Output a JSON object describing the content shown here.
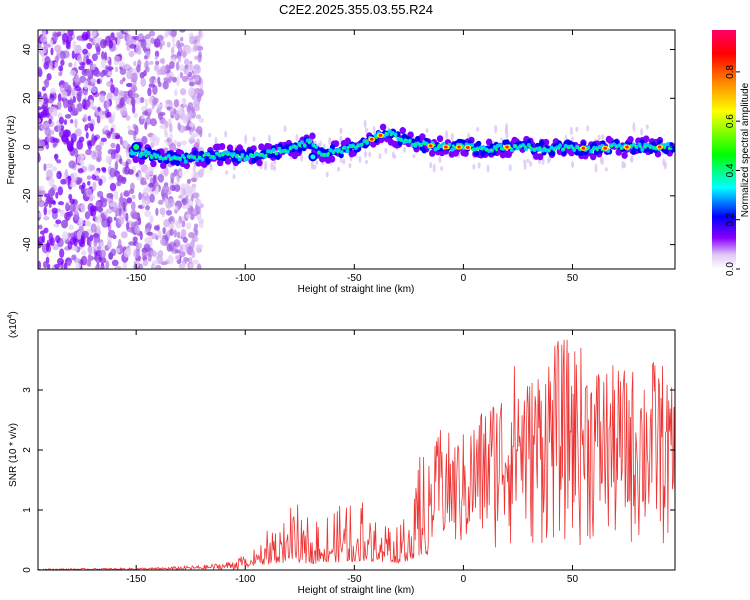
{
  "chart_data": [
    {
      "type": "heatmap",
      "title": "C2E2.2025.355.03.55.R24",
      "xlabel": "Height of straight line (km)",
      "ylabel": "Frequency (Hz)",
      "xlim": [
        -195,
        97
      ],
      "ylim": [
        -50,
        48
      ],
      "xticks": [
        -150,
        -100,
        -50,
        0,
        50
      ],
      "yticks": [
        -40,
        -20,
        0,
        20,
        40
      ],
      "colorbar": {
        "label": "Normalized spectral amplitude",
        "range": [
          0,
          0.97
        ],
        "ticks": [
          0.0,
          0.2,
          0.4,
          0.6,
          0.8
        ],
        "colors": [
          "#ffffff",
          "#d8b8f0",
          "#8800ff",
          "#0000ff",
          "#00ffff",
          "#00ff00",
          "#ffff00",
          "#ff8800",
          "#ff0000",
          "#ff0066"
        ]
      },
      "ridge": {
        "x": [
          -150,
          -140,
          -130,
          -120,
          -110,
          -100,
          -90,
          -80,
          -70,
          -65,
          -60,
          -50,
          -40,
          -35,
          -30,
          -20,
          -10,
          0,
          10,
          20,
          30,
          40,
          50,
          60,
          70,
          80,
          95
        ],
        "y": [
          -2,
          -4,
          -5,
          -4,
          -3,
          -4,
          -3,
          -1,
          2,
          -3,
          -2,
          0,
          4,
          6,
          4,
          1,
          0,
          0,
          -1,
          0,
          0,
          -1,
          0,
          -1,
          0,
          0,
          0
        ]
      },
      "hot_spots_x": [
        -42,
        -38,
        -15,
        -8,
        -2,
        2,
        20,
        55,
        65,
        75,
        90
      ]
    },
    {
      "type": "line",
      "xlabel": "Height of straight line (km)",
      "ylabel": "SNR (10 * v/v)",
      "y_multiplier": "(x10",
      "y_multiplier_exp": "4",
      "y_multiplier_close": ")",
      "xlim": [
        -195,
        97
      ],
      "ylim": [
        0,
        4
      ],
      "xticks": [
        -150,
        -100,
        -50,
        0,
        50
      ],
      "yticks": [
        0,
        1,
        2,
        3
      ],
      "series": [
        {
          "color": "#ee3333",
          "envelope": {
            "x": [
              -195,
              -160,
              -140,
              -120,
              -110,
              -100,
              -95,
              -90,
              -85,
              -80,
              -75,
              -70,
              -60,
              -50,
              -45,
              -40,
              -35,
              -30,
              -25,
              -20,
              -15,
              -10,
              -5,
              0,
              10,
              20,
              25,
              30,
              40,
              50,
              60,
              70,
              80,
              90,
              97
            ],
            "y": [
              0.02,
              0.03,
              0.04,
              0.08,
              0.12,
              0.25,
              0.35,
              0.55,
              0.75,
              0.85,
              0.75,
              0.7,
              0.8,
              0.85,
              1.0,
              0.9,
              0.85,
              0.7,
              1.0,
              1.4,
              1.8,
              2.5,
              2.2,
              2.3,
              2.8,
              3.2,
              3.6,
              3.2,
              3.8,
              3.9,
              3.5,
              3.4,
              3.4,
              3.6,
              2.9
            ]
          }
        }
      ]
    }
  ]
}
